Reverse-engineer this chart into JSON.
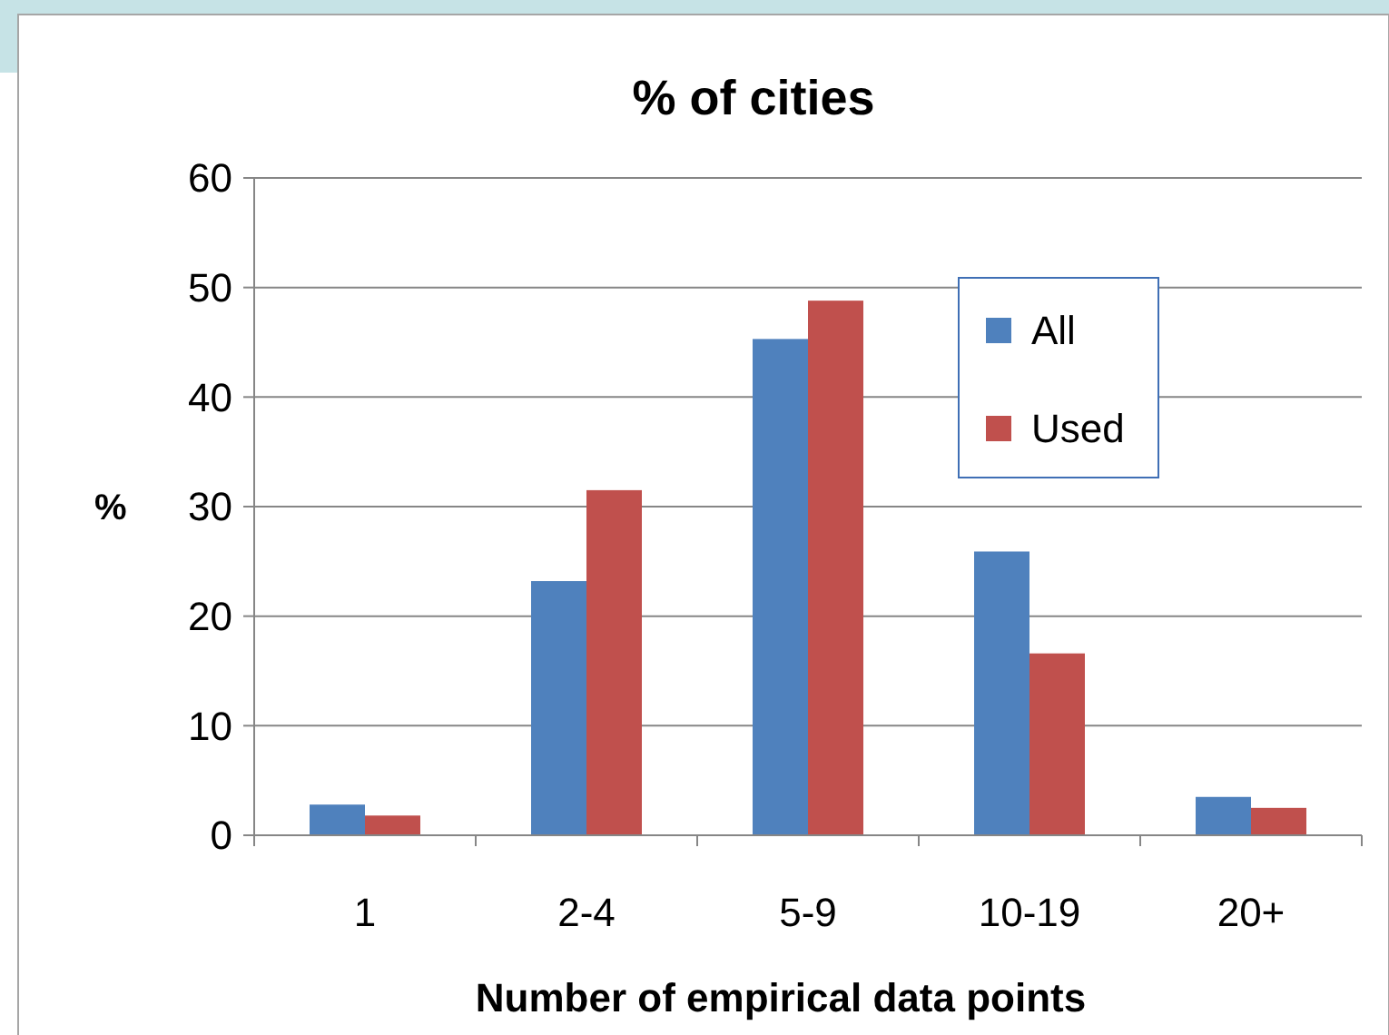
{
  "chart_data": {
    "type": "bar",
    "title": "% of cities",
    "xlabel": "Number of empirical data points",
    "ylabel": "%",
    "categories": [
      "1",
      "2-4",
      "5-9",
      "10-19",
      "20+"
    ],
    "series": [
      {
        "name": "All",
        "color": "#4f81bd",
        "values": [
          2.8,
          23.2,
          45.3,
          25.9,
          3.5
        ]
      },
      {
        "name": "Used",
        "color": "#c0504d",
        "values": [
          1.8,
          31.5,
          48.8,
          16.6,
          2.5
        ]
      }
    ],
    "ylim": [
      0,
      60
    ],
    "yticks": [
      0,
      10,
      20,
      30,
      40,
      50,
      60
    ],
    "grid": "y",
    "legend": "top right"
  }
}
